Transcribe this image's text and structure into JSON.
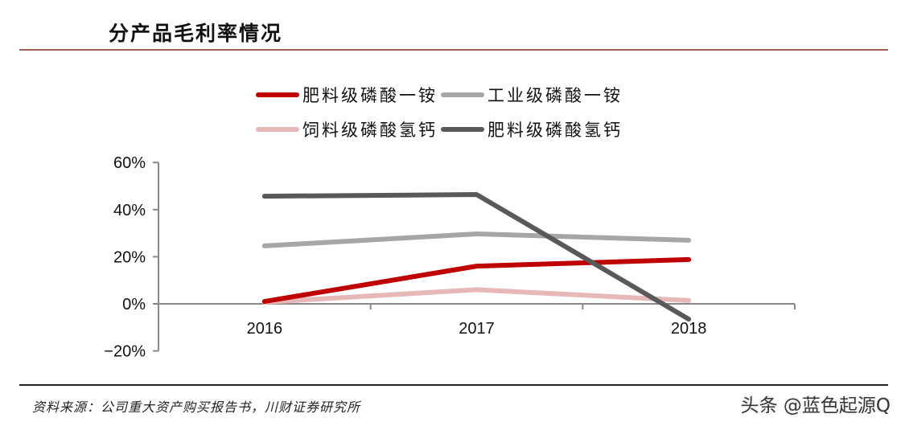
{
  "header": {
    "title": "分产品毛利率情况"
  },
  "legend": [
    {
      "label": "肥料级磷酸一铵",
      "color": "#c00000"
    },
    {
      "label": "工业级磷酸一铵",
      "color": "#a6a6a6"
    },
    {
      "label": "饲料级磷酸氢钙",
      "color": "#e6b9b8"
    },
    {
      "label": "肥料级磷酸氢钙",
      "color": "#595959"
    }
  ],
  "footer": {
    "source": "资料来源：公司重大资产购买报告书，川财证券研究所",
    "watermark": "头条 @蓝色起源Q"
  },
  "chart_data": {
    "type": "line",
    "title": "分产品毛利率情况",
    "xlabel": "",
    "ylabel": "",
    "categories": [
      "2016",
      "2017",
      "2018"
    ],
    "y_ticks": [
      "60%",
      "40%",
      "20%",
      "0%",
      "−20%"
    ],
    "ylim": [
      -20,
      60
    ],
    "grid": false,
    "legend_position": "top",
    "series": [
      {
        "name": "肥料级磷酸一铵",
        "color": "#c00000",
        "values": [
          1.0,
          16.0,
          18.8
        ]
      },
      {
        "name": "工业级磷酸一铵",
        "color": "#a6a6a6",
        "values": [
          24.6,
          29.7,
          27.0
        ]
      },
      {
        "name": "饲料级磷酸氢钙",
        "color": "#e6b9b8",
        "values": [
          0.7,
          6.0,
          1.4
        ]
      },
      {
        "name": "肥料级磷酸氢钙",
        "color": "#595959",
        "values": [
          45.7,
          46.4,
          -6.5
        ]
      }
    ]
  }
}
